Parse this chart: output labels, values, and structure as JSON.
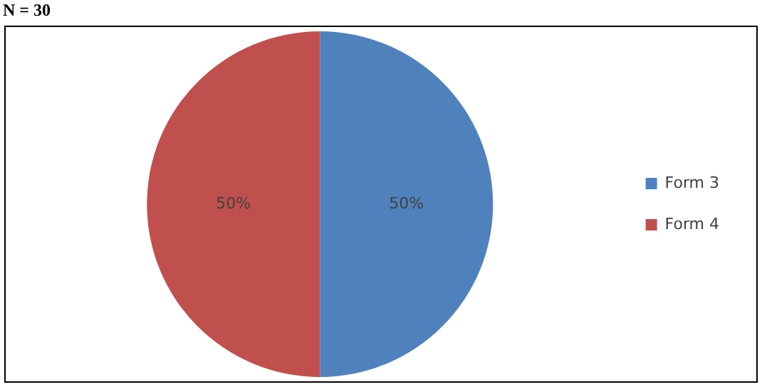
{
  "chart_data": {
    "type": "pie",
    "title": "N = 30",
    "categories": [
      "Form 3",
      "Form 4"
    ],
    "values": [
      50,
      50
    ],
    "colors": [
      "#4f81bd",
      "#c0504d"
    ],
    "value_labels": [
      "50%",
      "50%"
    ],
    "legend": "right"
  }
}
